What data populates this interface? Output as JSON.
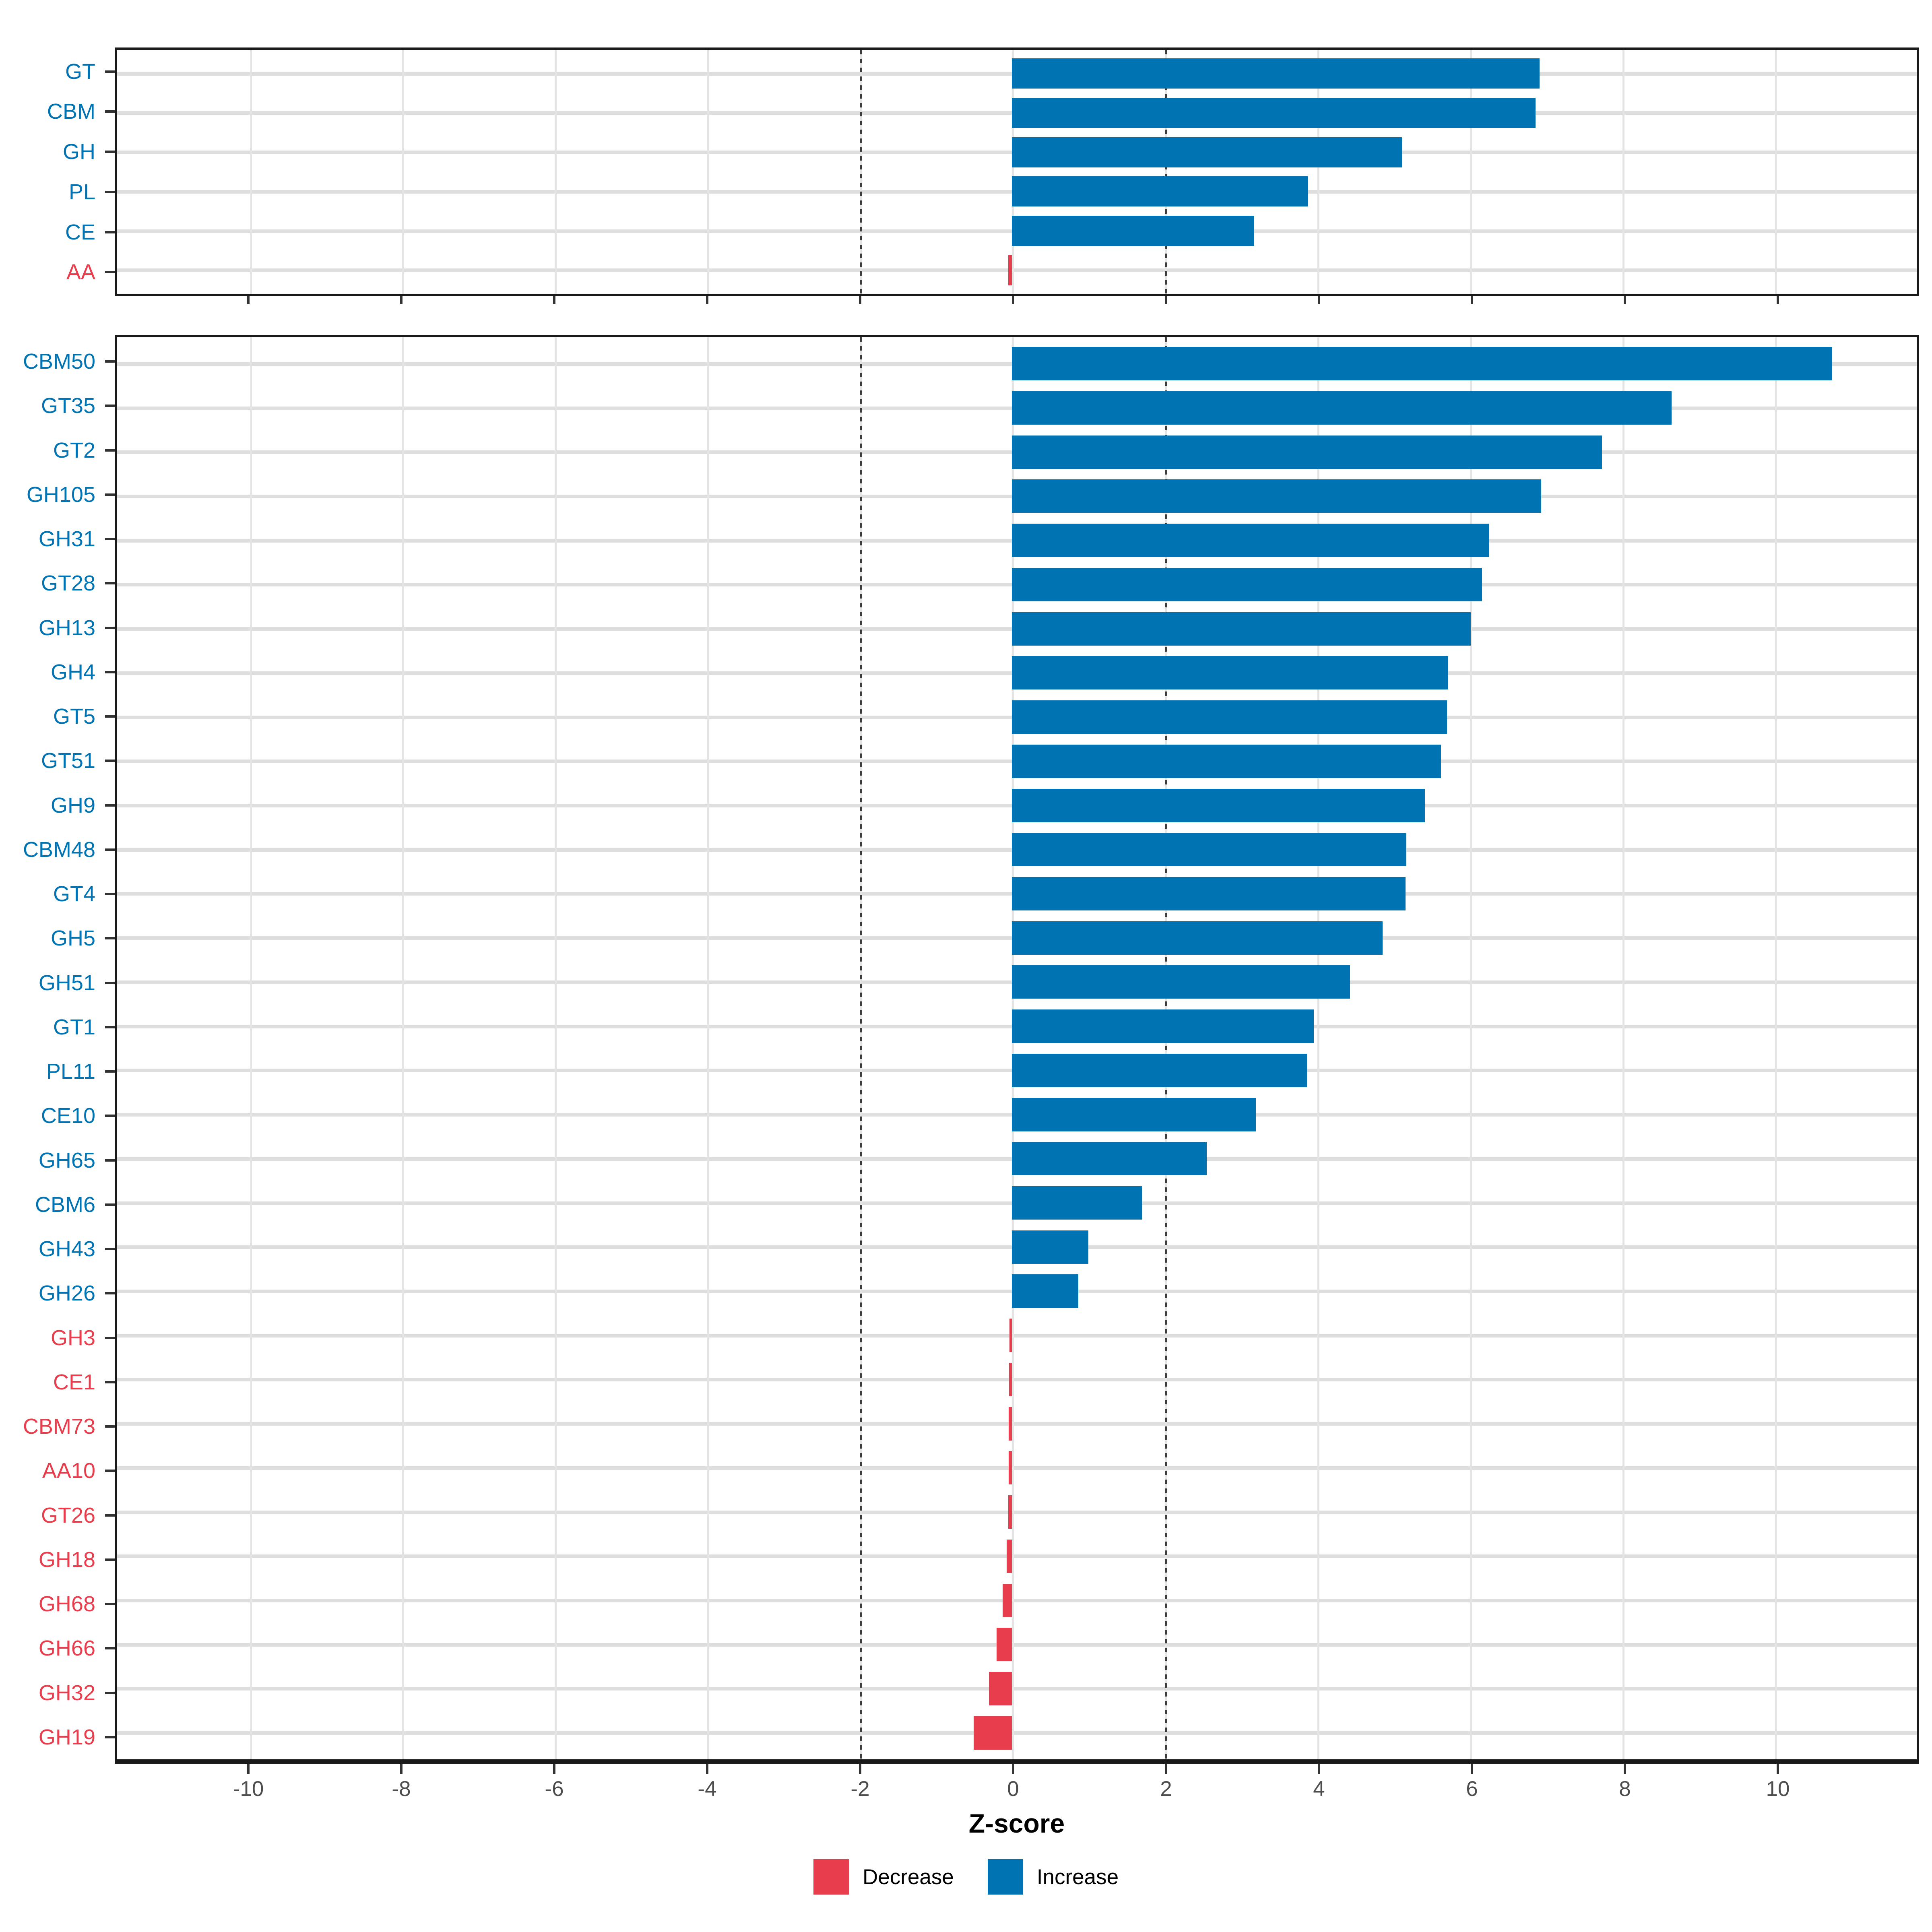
{
  "chart_data": {
    "type": "bar",
    "orientation": "horizontal",
    "xlabel": "Z-score",
    "xlim": [
      -11.75,
      11.85
    ],
    "x_ticks": [
      -10,
      -8,
      -6,
      -4,
      -2,
      0,
      2,
      4,
      6,
      8,
      10
    ],
    "reference_lines": [
      -2,
      2
    ],
    "grid": true,
    "legend_position": "bottom",
    "colors": {
      "increase": "#0073B2",
      "decrease": "#E83D4C",
      "grid_h": "#dedede",
      "grid_v": "#e4e4e4",
      "ref_line": "#3c3c3c",
      "tick_label": "#4d4d4d"
    },
    "legend": [
      {
        "label": "Decrease",
        "key": "decrease"
      },
      {
        "label": "Increase",
        "key": "increase"
      }
    ],
    "panels": [
      {
        "name": "cazyme-classes",
        "bars": [
          {
            "category": "GT",
            "value": 6.9
          },
          {
            "category": "CBM",
            "value": 6.85
          },
          {
            "category": "GH",
            "value": 5.1
          },
          {
            "category": "PL",
            "value": 3.87
          },
          {
            "category": "CE",
            "value": 3.17
          },
          {
            "category": "AA",
            "value": -0.05
          }
        ]
      },
      {
        "name": "cazyme-families",
        "bars": [
          {
            "category": "CBM50",
            "value": 10.73
          },
          {
            "category": "GT35",
            "value": 8.63
          },
          {
            "category": "GT2",
            "value": 7.72
          },
          {
            "category": "GH105",
            "value": 6.92
          },
          {
            "category": "GH31",
            "value": 6.24
          },
          {
            "category": "GT28",
            "value": 6.15
          },
          {
            "category": "GH13",
            "value": 6.0
          },
          {
            "category": "GH4",
            "value": 5.7
          },
          {
            "category": "GT5",
            "value": 5.69
          },
          {
            "category": "GT51",
            "value": 5.61
          },
          {
            "category": "GH9",
            "value": 5.4
          },
          {
            "category": "CBM48",
            "value": 5.16
          },
          {
            "category": "GT4",
            "value": 5.15
          },
          {
            "category": "GH5",
            "value": 4.85
          },
          {
            "category": "GH51",
            "value": 4.42
          },
          {
            "category": "GT1",
            "value": 3.95
          },
          {
            "category": "PL11",
            "value": 3.86
          },
          {
            "category": "CE10",
            "value": 3.19
          },
          {
            "category": "GH65",
            "value": 2.55
          },
          {
            "category": "CBM6",
            "value": 1.7
          },
          {
            "category": "GH43",
            "value": 1.0
          },
          {
            "category": "GH26",
            "value": 0.87
          },
          {
            "category": "GH3",
            "value": -0.03
          },
          {
            "category": "CE1",
            "value": -0.035
          },
          {
            "category": "CBM73",
            "value": -0.04
          },
          {
            "category": "AA10",
            "value": -0.045
          },
          {
            "category": "GT26",
            "value": -0.05
          },
          {
            "category": "GH18",
            "value": -0.07
          },
          {
            "category": "GH68",
            "value": -0.12
          },
          {
            "category": "GH66",
            "value": -0.2
          },
          {
            "category": "GH32",
            "value": -0.3
          },
          {
            "category": "GH19",
            "value": -0.5
          }
        ]
      }
    ]
  }
}
